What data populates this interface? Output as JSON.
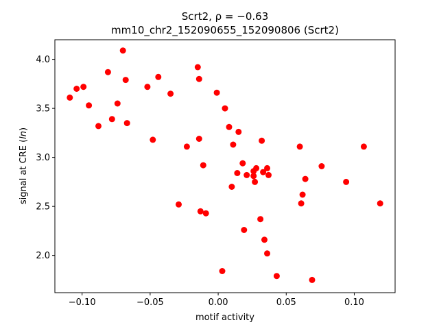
{
  "chart_data": {
    "type": "scatter",
    "title_line1": "Scrt2, ρ = −0.63",
    "title_line2": "mm10_chr2_152090655_152090806 (Scrt2)",
    "xlabel": "motif activity",
    "ylabel": "signal at CRE (ln)",
    "xlim": [
      -0.12,
      0.13
    ],
    "ylim": [
      1.62,
      4.2
    ],
    "x_ticks": [
      -0.1,
      -0.05,
      0.0,
      0.05,
      0.1
    ],
    "x_tick_labels": [
      "−0.10",
      "−0.05",
      "0.00",
      "0.05",
      "0.10"
    ],
    "y_ticks": [
      2.0,
      2.5,
      3.0,
      3.5,
      4.0
    ],
    "y_tick_labels": [
      "2.0",
      "2.5",
      "3.0",
      "3.5",
      "4.0"
    ],
    "grid": false,
    "marker_color": "#ff0000",
    "x": [
      -0.109,
      -0.104,
      -0.099,
      -0.095,
      -0.088,
      -0.081,
      -0.078,
      -0.074,
      -0.07,
      -0.068,
      -0.067,
      -0.052,
      -0.048,
      -0.044,
      -0.035,
      -0.029,
      -0.023,
      -0.015,
      -0.014,
      -0.014,
      -0.013,
      -0.011,
      -0.009,
      -0.001,
      0.003,
      0.005,
      0.008,
      0.01,
      0.011,
      0.014,
      0.015,
      0.018,
      0.019,
      0.021,
      0.026,
      0.026,
      0.027,
      0.028,
      0.031,
      0.032,
      0.033,
      0.034,
      0.036,
      0.036,
      0.037,
      0.043,
      0.06,
      0.061,
      0.062,
      0.064,
      0.069,
      0.076,
      0.094,
      0.107,
      0.119
    ],
    "y": [
      3.61,
      3.7,
      3.72,
      3.53,
      3.32,
      3.87,
      3.39,
      3.55,
      4.09,
      3.79,
      3.35,
      3.72,
      3.18,
      3.82,
      3.65,
      2.52,
      3.11,
      3.92,
      3.8,
      3.19,
      2.45,
      2.92,
      2.43,
      3.66,
      1.84,
      3.5,
      3.31,
      2.7,
      3.13,
      2.84,
      3.26,
      2.94,
      2.26,
      2.82,
      2.81,
      2.86,
      2.75,
      2.89,
      2.37,
      3.17,
      2.85,
      2.16,
      2.89,
      2.02,
      2.82,
      1.79,
      3.11,
      2.53,
      2.62,
      2.78,
      1.75,
      2.91,
      2.75,
      3.11,
      2.53
    ]
  }
}
